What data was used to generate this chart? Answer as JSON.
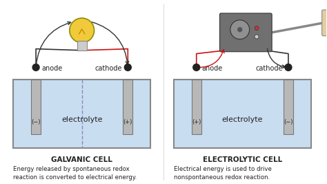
{
  "bg_color": "#ffffff",
  "galvanic": {
    "label": "GALVANIC CELL",
    "desc1": "Energy released by spontaneous redox",
    "desc2": "reaction is converted to electrical energy.",
    "anode_label": "anode",
    "cathode_label": "cathode",
    "anode_sign": "(−)",
    "cathode_sign": "(+)"
  },
  "electrolytic": {
    "label": "ELECTROLYTIC CELL",
    "desc1": "Electrical energy is used to drive",
    "desc2": "nonspontaneous redox reaction.",
    "anode_label": "anode",
    "cathode_label": "cathode",
    "anode_sign": "(+)",
    "cathode_sign": "(−)"
  },
  "electrolyte_text": "electrolyte",
  "electrode_color": "#b8b8b8",
  "electrolyte_fill": "#c8ddf0",
  "electrolyte_edge": "#aaaaaa",
  "tank_edge_color": "#888888",
  "arrow_color": "#333333",
  "red_wire_color": "#cc1111",
  "text_color": "#222222",
  "dashed_color": "#8888bb",
  "node_color": "#222222",
  "bulb_color": "#f0c830",
  "box_color": "#707070",
  "outlet_color": "#e0cfa0"
}
